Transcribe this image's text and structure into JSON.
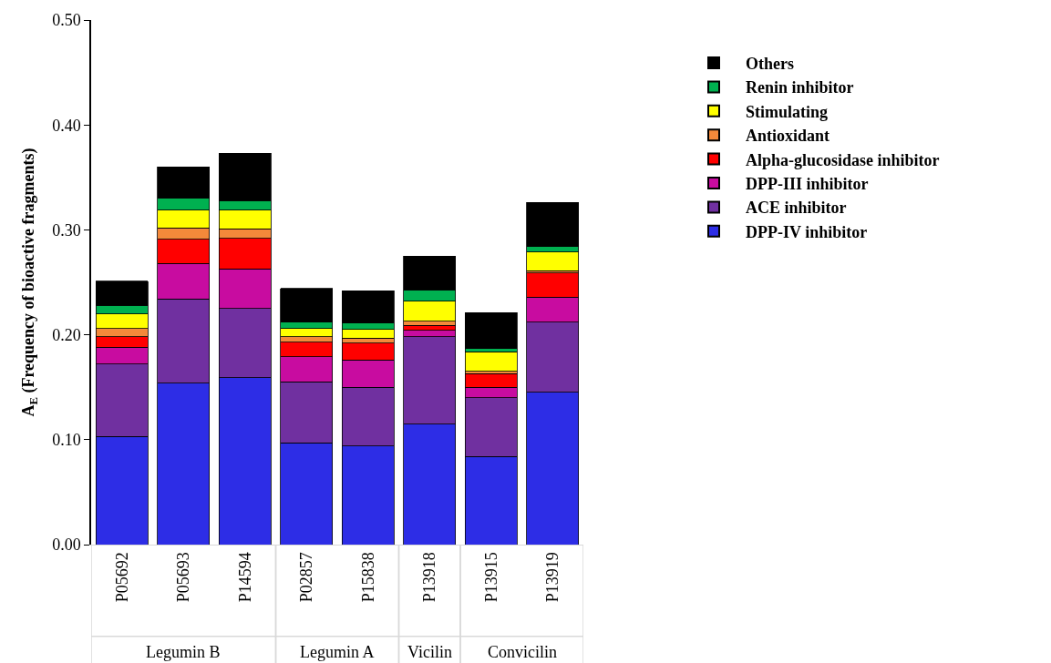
{
  "chart_data": {
    "type": "bar",
    "stacked": true,
    "ylabel": "A$_{E}$ (Frequency of bioactive fragments)",
    "categories": [
      "P05692",
      "P05693",
      "P14594",
      "P02857",
      "P15838",
      "P13918",
      "P13915",
      "P13919"
    ],
    "series": [
      {
        "name": "DPP-IV inhibitor",
        "color": "#2d2de6",
        "values": [
          0.103,
          0.154,
          0.159,
          0.097,
          0.094,
          0.115,
          0.084,
          0.145
        ]
      },
      {
        "name": "ACE inhibitor",
        "color": "#7030a0",
        "values": [
          0.069,
          0.08,
          0.066,
          0.058,
          0.056,
          0.083,
          0.056,
          0.067
        ]
      },
      {
        "name": "DPP-III inhibitor",
        "color": "#c80ca0",
        "values": [
          0.016,
          0.034,
          0.038,
          0.024,
          0.026,
          0.006,
          0.01,
          0.024
        ]
      },
      {
        "name": "Alpha-glucosidase inhibitor",
        "color": "#ff0000",
        "values": [
          0.01,
          0.023,
          0.029,
          0.014,
          0.016,
          0.005,
          0.013,
          0.023
        ]
      },
      {
        "name": "Antioxidant",
        "color": "#f4893a",
        "values": [
          0.008,
          0.011,
          0.009,
          0.005,
          0.005,
          0.004,
          0.002,
          0.002
        ]
      },
      {
        "name": "Stimulating",
        "color": "#ffff00",
        "values": [
          0.014,
          0.017,
          0.018,
          0.008,
          0.008,
          0.019,
          0.019,
          0.018
        ]
      },
      {
        "name": "Renin inhibitor",
        "color": "#00b050",
        "values": [
          0.008,
          0.011,
          0.009,
          0.006,
          0.006,
          0.011,
          0.003,
          0.005
        ]
      },
      {
        "name": "Others",
        "color": "#000000",
        "values": [
          0.023,
          0.03,
          0.045,
          0.032,
          0.031,
          0.032,
          0.034,
          0.042
        ]
      }
    ],
    "ylim": [
      0,
      0.5
    ],
    "yticks": [
      {
        "value": 0,
        "label": "0.00"
      },
      {
        "value": 0.1,
        "label": "0.10"
      },
      {
        "value": 0.2,
        "label": "0.20"
      },
      {
        "value": 0.3,
        "label": "0.30"
      },
      {
        "value": 0.4,
        "label": "0.40"
      },
      {
        "value": 0.5,
        "label": "0.50"
      }
    ],
    "annotations": [
      "Legumin B",
      "Legumin A",
      "Vicilin",
      "Convicilin"
    ],
    "legend": "right"
  }
}
